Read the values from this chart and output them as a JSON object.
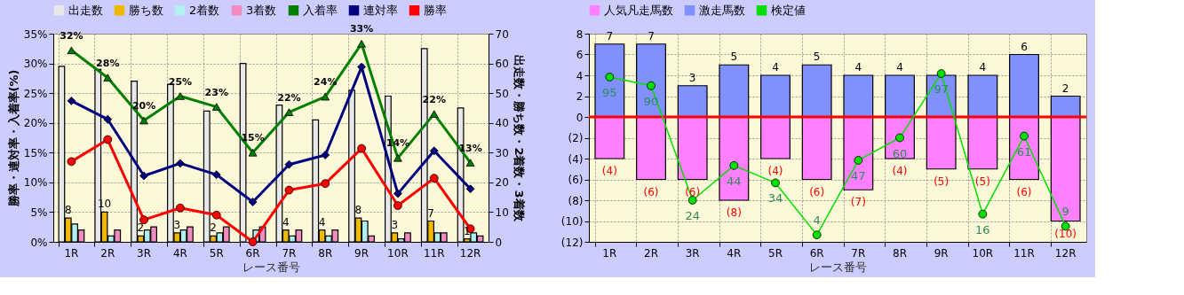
{
  "chart_data": [
    {
      "type": "bar",
      "xlabel": "レース番号",
      "ylabel": "勝率・連対率・入着率(%)",
      "y2label": "出走数・勝ち数・2着数・3着数",
      "categories": [
        "1R",
        "2R",
        "3R",
        "4R",
        "5R",
        "6R",
        "7R",
        "8R",
        "9R",
        "10R",
        "11R",
        "12R"
      ],
      "series": [
        {
          "name": "出走数",
          "axis": "y2",
          "color": "#e8e8e8",
          "values": [
            59,
            58,
            54,
            53,
            44,
            60,
            46,
            41,
            51,
            49,
            65,
            45
          ]
        },
        {
          "name": "勝ち数",
          "axis": "y2",
          "color": "#f0b800",
          "values": [
            8,
            10,
            2,
            3,
            2,
            0,
            4,
            4,
            8,
            3,
            7,
            1
          ],
          "value_labels": [
            "8",
            "10",
            "2",
            "3",
            "2",
            null,
            "4",
            "4",
            "8",
            "3",
            "7",
            "1"
          ]
        },
        {
          "name": "2着数",
          "axis": "y2",
          "color": "#b0f0f0",
          "values": [
            6,
            2,
            4,
            4,
            3,
            4,
            2,
            2,
            7,
            1,
            3,
            3
          ]
        },
        {
          "name": "3着数",
          "axis": "y2",
          "color": "#f08cc0",
          "values": [
            4,
            4,
            5,
            5,
            5,
            5,
            4,
            4,
            2,
            3,
            3,
            2
          ]
        },
        {
          "name": "入着率",
          "type": "line",
          "axis": "y",
          "color": "#008000",
          "marker": "triangle",
          "values": [
            32.2,
            27.6,
            20.4,
            24.5,
            22.7,
            15.0,
            21.8,
            24.4,
            33.3,
            14.1,
            21.5,
            13.3
          ],
          "value_labels": [
            "32%",
            "28%",
            "20%",
            "25%",
            "23%",
            "15%",
            "22%",
            "24%",
            "33%",
            "14%",
            "22%",
            "13%"
          ]
        },
        {
          "name": "連対率",
          "type": "line",
          "axis": "y",
          "color": "#000080",
          "marker": "diamond",
          "values": [
            23.7,
            20.6,
            11.1,
            13.2,
            11.3,
            6.7,
            13.0,
            14.6,
            29.4,
            8.1,
            15.3,
            8.9
          ]
        },
        {
          "name": "勝率",
          "type": "line",
          "axis": "y",
          "color": "#ff0000",
          "marker": "circle",
          "values": [
            13.5,
            17.2,
            3.7,
            5.7,
            4.5,
            0,
            8.7,
            9.8,
            15.7,
            6.1,
            10.7,
            2.2
          ]
        }
      ],
      "ylim": [
        0,
        35
      ],
      "yticks": [
        {
          "value": 0,
          "label": "0%"
        },
        {
          "value": 5,
          "label": "5%"
        },
        {
          "value": 10,
          "label": "10%"
        },
        {
          "value": 15,
          "label": "15%"
        },
        {
          "value": 20,
          "label": "20%"
        },
        {
          "value": 25,
          "label": "25%"
        },
        {
          "value": 30,
          "label": "30%"
        },
        {
          "value": 35,
          "label": "35%"
        }
      ],
      "y2lim": [
        0,
        70
      ],
      "y2ticks": [
        0,
        10,
        20,
        30,
        40,
        50,
        60,
        70
      ],
      "grid": true,
      "legend": "top",
      "line_style": "solid"
    },
    {
      "type": "bar",
      "xlabel": "レース番号",
      "stacked": true,
      "categories": [
        "1R",
        "2R",
        "3R",
        "4R",
        "5R",
        "6R",
        "7R",
        "8R",
        "9R",
        "10R",
        "11R",
        "12R"
      ],
      "series": [
        {
          "name": "人気凡走馬数",
          "axis": "y",
          "color": "#ff80ff",
          "values": [
            -4,
            -6,
            -6,
            -8,
            -4,
            -6,
            -7,
            -4,
            -5,
            -5,
            -6,
            -10
          ],
          "value_labels": [
            "(4)",
            "(6)",
            "(6)",
            "(8)",
            "(4)",
            "(6)",
            "(7)",
            "(4)",
            "(5)",
            "(5)",
            "(6)",
            "(10)"
          ]
        },
        {
          "name": "激走馬数",
          "axis": "y",
          "color": "#8090ff",
          "values": [
            7,
            7,
            3,
            5,
            4,
            5,
            4,
            4,
            4,
            4,
            6,
            2
          ],
          "value_labels": [
            "7",
            "7",
            "3",
            "5",
            "4",
            "5",
            "4",
            "4",
            null,
            "4",
            "6",
            "2"
          ]
        },
        {
          "name": "検定値",
          "type": "line",
          "axis": "y2",
          "color": "#00e000",
          "marker": "circle",
          "values": [
            95,
            90,
            24,
            44,
            34,
            4,
            47,
            60,
            97,
            16,
            61,
            9
          ],
          "value_labels": [
            "95",
            "90",
            "24",
            "44",
            "34",
            "4",
            "47",
            "60",
            "97",
            "16",
            "61",
            "9"
          ]
        }
      ],
      "ylim": [
        -12,
        8
      ],
      "yticks": [
        {
          "value": -12,
          "label": "(12)"
        },
        {
          "value": -10,
          "label": "(10)"
        },
        {
          "value": -8,
          "label": "(8)"
        },
        {
          "value": -6,
          "label": "(6)"
        },
        {
          "value": -4,
          "label": "(4)"
        },
        {
          "value": -2,
          "label": "(2)"
        },
        0,
        2,
        4,
        6,
        8
      ],
      "y2lim": [
        0,
        120
      ],
      "ref_lines": [
        {
          "axis": "y",
          "value": 0,
          "color": "#ff0000"
        }
      ],
      "grid": true,
      "legend": "top",
      "line_style": "solid"
    }
  ]
}
